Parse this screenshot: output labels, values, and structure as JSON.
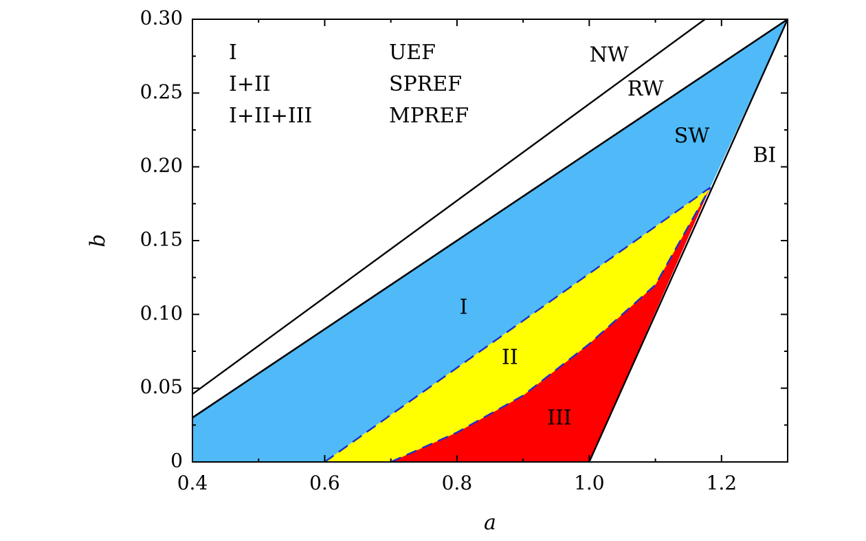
{
  "chart_data": {
    "type": "area",
    "xlabel": "a",
    "ylabel": "b",
    "xlim": [
      0.4,
      1.3
    ],
    "ylim": [
      0,
      0.3
    ],
    "grid": false,
    "x_ticks": [
      {
        "value": 0.4,
        "label": "0.4"
      },
      {
        "value": 0.6,
        "label": "0.6"
      },
      {
        "value": 0.8,
        "label": "0.8"
      },
      {
        "value": 1.0,
        "label": "1.0"
      },
      {
        "value": 1.2,
        "label": "1.2"
      }
    ],
    "y_ticks": [
      {
        "value": 0,
        "label": "0"
      },
      {
        "value": 0.05,
        "label": "0.05"
      },
      {
        "value": 0.1,
        "label": "0.10"
      },
      {
        "value": 0.15,
        "label": "0.15"
      },
      {
        "value": 0.2,
        "label": "0.20"
      },
      {
        "value": 0.25,
        "label": "0.25"
      },
      {
        "value": 0.3,
        "label": "0.30"
      }
    ],
    "regions": [
      {
        "label": "I",
        "color": "#4fbaf7",
        "label_at": [
          0.81,
          0.104
        ],
        "points": [
          [
            0.4,
            0.03
          ],
          [
            1.3,
            0.3
          ],
          [
            1.183,
            0.186
          ],
          [
            0.6,
            0.0
          ],
          [
            0.4,
            0.0
          ]
        ]
      },
      {
        "label": "II",
        "color": "#ffff00",
        "label_at": [
          0.88,
          0.07
        ],
        "points": [
          [
            0.6,
            0.0
          ],
          [
            1.183,
            0.186
          ],
          [
            1.1,
            0.12
          ],
          [
            1.0,
            0.08
          ],
          [
            0.9,
            0.045
          ],
          [
            0.8,
            0.02
          ],
          [
            0.7,
            0.0
          ]
        ]
      },
      {
        "label": "III",
        "color": "#ff0000",
        "label_at": [
          0.955,
          0.029
        ],
        "points": [
          [
            0.7,
            0.0
          ],
          [
            0.8,
            0.02
          ],
          [
            0.9,
            0.045
          ],
          [
            1.0,
            0.08
          ],
          [
            1.1,
            0.12
          ],
          [
            1.183,
            0.186
          ],
          [
            1.0,
            0.0
          ]
        ]
      }
    ],
    "boundary_lines": [
      {
        "name": "NW",
        "color": "#000000",
        "style": "solid",
        "points": [
          [
            0.4,
            0.046
          ],
          [
            1.175,
            0.3
          ]
        ],
        "label_at": [
          1.03,
          0.275
        ]
      },
      {
        "name": "RW",
        "color": "#000000",
        "style": "solid",
        "points": [
          [
            0.4,
            0.03
          ],
          [
            1.3,
            0.3
          ]
        ],
        "label_at": [
          1.085,
          0.252
        ]
      },
      {
        "name": "SW",
        "color": "#000000",
        "style": "solid",
        "points": [
          [
            0.4,
            0.03
          ],
          [
            1.3,
            0.3
          ]
        ],
        "label_at": [
          1.155,
          0.22
        ]
      },
      {
        "name": "BI",
        "color": "#000000",
        "style": "solid",
        "points": [
          [
            1.0,
            0.0
          ],
          [
            1.3,
            0.3
          ]
        ],
        "label_at": [
          1.265,
          0.207
        ]
      }
    ],
    "dashed_lines": [
      {
        "name": "I-II boundary",
        "color": "#1a2fcf",
        "points": [
          [
            0.6,
            0.0
          ],
          [
            1.183,
            0.186
          ]
        ]
      },
      {
        "name": "II-III boundary",
        "color": "#1a2fcf",
        "points": [
          [
            0.7,
            0.0
          ],
          [
            0.8,
            0.02
          ],
          [
            0.9,
            0.045
          ],
          [
            1.0,
            0.08
          ],
          [
            1.1,
            0.12
          ],
          [
            1.183,
            0.186
          ]
        ]
      }
    ],
    "legend": {
      "placement": "top-left",
      "entries": [
        {
          "key": "I",
          "value": "UEF"
        },
        {
          "key": "I+II",
          "value": "SPREF"
        },
        {
          "key": "I+II+III",
          "value": "MPREF"
        }
      ]
    }
  }
}
